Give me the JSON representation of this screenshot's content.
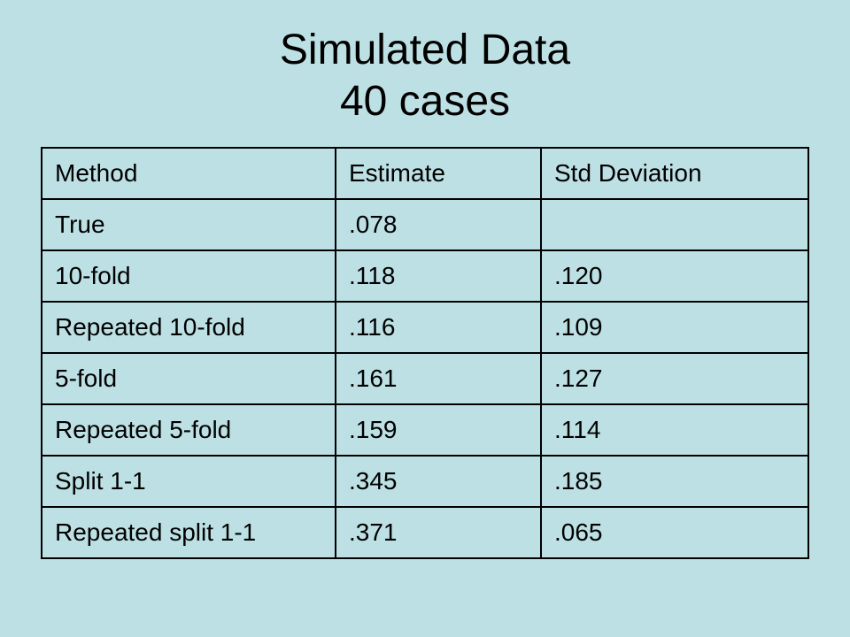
{
  "title": {
    "line1": "Simulated Data",
    "line2": "40 cases"
  },
  "table": {
    "headers": [
      "Method",
      "Estimate",
      "Std Deviation"
    ],
    "rows": [
      [
        "True",
        ".078",
        ""
      ],
      [
        "10-fold",
        ".118",
        ".120"
      ],
      [
        "Repeated 10-fold",
        ".116",
        ".109"
      ],
      [
        "5-fold",
        ".161",
        ".127"
      ],
      [
        "Repeated 5-fold",
        ".159",
        ".114"
      ],
      [
        "Split 1-1",
        ".345",
        ".185"
      ],
      [
        "Repeated split 1-1",
        ".371",
        ".065"
      ]
    ]
  },
  "colors": {
    "background": "#bde0e4",
    "text": "#000000",
    "border": "#000000"
  }
}
